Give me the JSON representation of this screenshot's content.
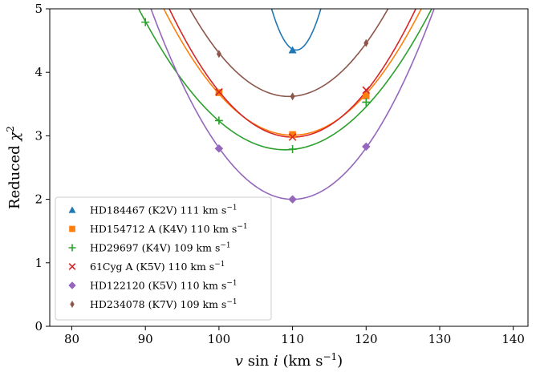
{
  "chart_data": {
    "type": "line",
    "xlabel": "v sin i (km s⁻¹)",
    "xlabel_parts": {
      "v": "v",
      "sin": " sin ",
      "i": "i",
      "units": " (km s",
      "exp": "−1",
      "close": ")"
    },
    "ylabel": "Reduced χ²",
    "ylabel_parts": {
      "text": "Reduced ",
      "chi": "χ",
      "exp": "2"
    },
    "xlim": [
      77,
      142
    ],
    "ylim": [
      0,
      5
    ],
    "xticks": [
      80,
      90,
      100,
      110,
      120,
      130,
      140
    ],
    "yticks": [
      0,
      1,
      2,
      3,
      4,
      5
    ],
    "grid": false,
    "legend_placement": "lower-left",
    "series": [
      {
        "name": "HD184467 (K2V) 111 km s⁻¹",
        "label_main": "HD184467 (K2V) 111 km s",
        "label_exp": "−1",
        "color": "#1f77b4",
        "marker": "triangle",
        "points": [
          {
            "x": 110,
            "y": 4.35
          }
        ],
        "fit": {
          "vertex_x": 110.5,
          "min": 4.35,
          "curvature": 0.058
        }
      },
      {
        "name": "HD154712 A (K4V) 110 km s⁻¹",
        "label_main": "HD154712 A (K4V) 110 km s",
        "label_exp": "−1",
        "color": "#ff7f0e",
        "marker": "square",
        "points": [
          {
            "x": 100,
            "y": 3.68
          },
          {
            "x": 110,
            "y": 3.02
          },
          {
            "x": 120,
            "y": 3.63
          }
        ],
        "fit": {
          "vertex_x": 110.0,
          "min": 3.01,
          "curvature": 0.0065
        }
      },
      {
        "name": "HD29697 (K4V) 109 km s⁻¹",
        "label_main": "HD29697 (K4V) 109 km s",
        "label_exp": "−1",
        "color": "#2ca02c",
        "marker": "plus",
        "points": [
          {
            "x": 90,
            "y": 4.79
          },
          {
            "x": 100,
            "y": 3.24
          },
          {
            "x": 110,
            "y": 2.79
          },
          {
            "x": 120,
            "y": 3.53
          }
        ],
        "fit": {
          "vertex_x": 109.0,
          "min": 2.78,
          "curvature": 0.0056
        }
      },
      {
        "name": "61Cyg A (K5V) 110 km s⁻¹",
        "label_main": "61Cyg A (K5V) 110 km s",
        "label_exp": "−1",
        "color": "#d62728",
        "marker": "x",
        "points": [
          {
            "x": 100,
            "y": 3.69
          },
          {
            "x": 110,
            "y": 2.98
          },
          {
            "x": 120,
            "y": 3.72
          }
        ],
        "fit": {
          "vertex_x": 110.0,
          "min": 2.98,
          "curvature": 0.0072
        }
      },
      {
        "name": "HD122120 (K5V) 110 km s⁻¹",
        "label_main": "HD122120 (K5V) 110 km s",
        "label_exp": "−1",
        "color": "#9467bd",
        "marker": "diamond",
        "points": [
          {
            "x": 100,
            "y": 2.8
          },
          {
            "x": 110,
            "y": 2.0
          },
          {
            "x": 120,
            "y": 2.83
          }
        ],
        "fit": {
          "vertex_x": 110.0,
          "min": 2.0,
          "curvature": 0.0081
        }
      },
      {
        "name": "HD234078 (K7V) 109 km s⁻¹",
        "label_main": "HD234078 (K7V) 109 km s",
        "label_exp": "−1",
        "color": "#8c564b",
        "marker": "thin-diamond",
        "points": [
          {
            "x": 100,
            "y": 4.29
          },
          {
            "x": 110,
            "y": 3.62
          },
          {
            "x": 120,
            "y": 4.46
          }
        ],
        "fit": {
          "vertex_x": 109.5,
          "min": 3.62,
          "curvature": 0.0076
        }
      }
    ]
  }
}
